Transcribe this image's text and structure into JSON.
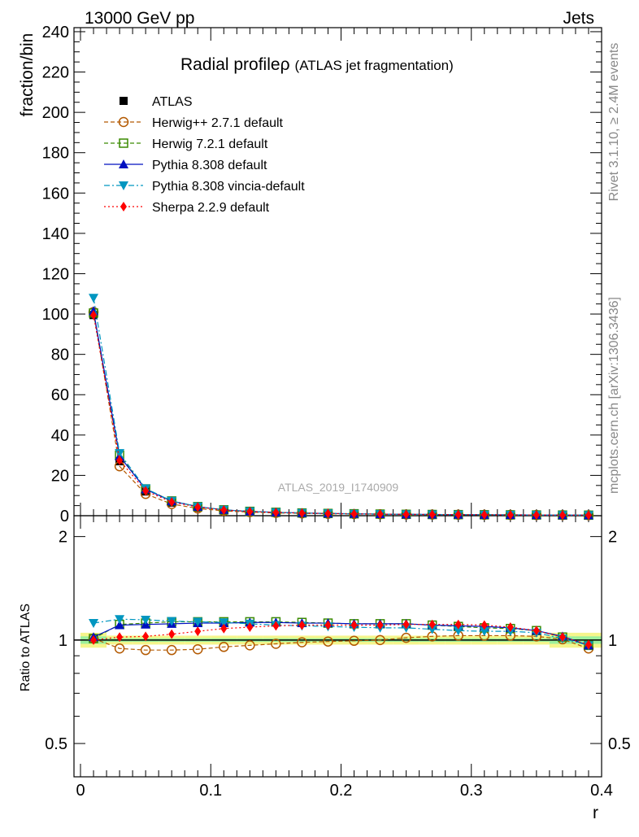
{
  "header": {
    "left_label": "13000 GeV pp",
    "right_label": "Jets"
  },
  "side_labels": {
    "rivet": "Rivet 3.1.10, ≥ 2.4M events",
    "mcplots": "mcplots.cern.ch [arXiv:1306.3436]"
  },
  "chart_data": [
    {
      "type": "scatter",
      "panel": "main",
      "title": "Radial profile",
      "title_symbol": "ρ",
      "subtitle": "(ATLAS jet fragmentation)",
      "watermark": "ATLAS_2019_I1740909",
      "ylabel": "fraction/bin",
      "xlabel": "",
      "xlim": [
        -0.005,
        0.4
      ],
      "ylim": [
        0,
        242
      ],
      "y_ticks": [
        0,
        20,
        40,
        60,
        80,
        100,
        120,
        140,
        160,
        180,
        200,
        220,
        240
      ],
      "x": [
        0.01,
        0.03,
        0.05,
        0.07,
        0.09,
        0.11,
        0.13,
        0.15,
        0.17,
        0.19,
        0.21,
        0.23,
        0.25,
        0.27,
        0.29,
        0.31,
        0.33,
        0.35,
        0.37,
        0.39
      ],
      "legend_position": "top-left",
      "series": [
        {
          "name": "ATLAS",
          "color": "#000000",
          "marker": "square-filled",
          "line": "none",
          "values": [
            99.5,
            27.0,
            12.0,
            6.5,
            4.0,
            2.6,
            1.9,
            1.5,
            1.2,
            1.0,
            0.85,
            0.72,
            0.62,
            0.55,
            0.48,
            0.43,
            0.38,
            0.34,
            0.31,
            0.28
          ]
        },
        {
          "name": "Herwig++ 2.7.1 default",
          "color": "#b35900",
          "marker": "circle-open",
          "line": "dashed",
          "values": [
            101.0,
            24.5,
            10.8,
            5.8,
            3.6,
            2.4,
            1.75,
            1.4,
            1.15,
            0.95,
            0.82,
            0.7,
            0.6,
            0.55,
            0.48,
            0.43,
            0.38,
            0.34,
            0.31,
            0.27
          ]
        },
        {
          "name": "Herwig 7.2.1 default",
          "color": "#3a8a00",
          "marker": "square-open",
          "line": "dashed",
          "values": [
            100.5,
            30.0,
            13.3,
            7.3,
            4.5,
            2.9,
            2.15,
            1.68,
            1.35,
            1.12,
            0.95,
            0.8,
            0.69,
            0.6,
            0.53,
            0.47,
            0.41,
            0.36,
            0.32,
            0.27
          ]
        },
        {
          "name": "Pythia 8.308 default",
          "color": "#0010c0",
          "marker": "triangle-up",
          "line": "solid",
          "values": [
            101.5,
            29.5,
            13.1,
            7.2,
            4.5,
            2.9,
            2.12,
            1.66,
            1.34,
            1.11,
            0.94,
            0.79,
            0.68,
            0.6,
            0.53,
            0.47,
            0.41,
            0.36,
            0.31,
            0.27
          ]
        },
        {
          "name": "Pythia 8.308 vincia-default",
          "color": "#0096c0",
          "marker": "triangle-down",
          "line": "dashdot",
          "values": [
            108.0,
            31.0,
            13.5,
            7.3,
            4.5,
            2.9,
            2.1,
            1.64,
            1.32,
            1.1,
            0.93,
            0.78,
            0.67,
            0.58,
            0.51,
            0.46,
            0.4,
            0.35,
            0.31,
            0.27
          ]
        },
        {
          "name": "Sherpa 2.2.9 default",
          "color": "#ff0000",
          "marker": "diamond",
          "line": "dotted",
          "values": [
            99.5,
            27.5,
            12.3,
            6.8,
            4.3,
            2.8,
            2.05,
            1.62,
            1.31,
            1.09,
            0.93,
            0.79,
            0.68,
            0.6,
            0.53,
            0.47,
            0.41,
            0.36,
            0.31,
            0.27
          ]
        }
      ]
    },
    {
      "type": "scatter",
      "panel": "ratio",
      "ylabel": "Ratio to ATLAS",
      "xlabel": "r",
      "xlim": [
        -0.005,
        0.4
      ],
      "ylim": [
        0.4,
        2.3
      ],
      "y_ticks": [
        0.5,
        1,
        2
      ],
      "y_tick_labels": [
        "0.5",
        "1",
        "2"
      ],
      "x_ticks": [
        0,
        0.1,
        0.2,
        0.3,
        0.4
      ],
      "x_tick_labels": [
        "0",
        "0.1",
        "0.2",
        "0.3",
        "0.4"
      ],
      "x": [
        0.01,
        0.03,
        0.05,
        0.07,
        0.09,
        0.11,
        0.13,
        0.15,
        0.17,
        0.19,
        0.21,
        0.23,
        0.25,
        0.27,
        0.29,
        0.31,
        0.33,
        0.35,
        0.37,
        0.39
      ],
      "band_outer": [
        0.05,
        0.03,
        0.03,
        0.03,
        0.03,
        0.03,
        0.03,
        0.03,
        0.03,
        0.03,
        0.03,
        0.03,
        0.03,
        0.03,
        0.03,
        0.03,
        0.03,
        0.03,
        0.05,
        0.05
      ],
      "band_inner": [
        0.025,
        0.012,
        0.012,
        0.012,
        0.012,
        0.012,
        0.012,
        0.012,
        0.012,
        0.012,
        0.012,
        0.012,
        0.012,
        0.012,
        0.012,
        0.012,
        0.012,
        0.012,
        0.025,
        0.025
      ],
      "series": [
        {
          "name": "Herwig++ 2.7.1 default",
          "color": "#b35900",
          "marker": "circle-open",
          "line": "dashed",
          "values": [
            1.01,
            0.945,
            0.935,
            0.935,
            0.94,
            0.955,
            0.965,
            0.975,
            0.985,
            0.99,
            0.995,
            1.0,
            1.015,
            1.025,
            1.03,
            1.03,
            1.03,
            1.025,
            1.005,
            0.945
          ]
        },
        {
          "name": "Herwig 7.2.1 default",
          "color": "#3a8a00",
          "marker": "square-open",
          "line": "dashed",
          "values": [
            1.01,
            1.11,
            1.12,
            1.13,
            1.13,
            1.13,
            1.13,
            1.13,
            1.125,
            1.12,
            1.115,
            1.115,
            1.115,
            1.105,
            1.095,
            1.085,
            1.08,
            1.065,
            1.02,
            0.965
          ]
        },
        {
          "name": "Pythia 8.308 default",
          "color": "#0010c0",
          "marker": "triangle-up",
          "line": "solid",
          "values": [
            1.02,
            1.105,
            1.11,
            1.115,
            1.12,
            1.12,
            1.125,
            1.125,
            1.12,
            1.12,
            1.115,
            1.115,
            1.115,
            1.105,
            1.1,
            1.095,
            1.085,
            1.065,
            1.025,
            0.965
          ]
        },
        {
          "name": "Pythia 8.308 vincia-default",
          "color": "#0096c0",
          "marker": "triangle-down",
          "line": "dashdot",
          "values": [
            1.12,
            1.15,
            1.145,
            1.135,
            1.13,
            1.125,
            1.115,
            1.105,
            1.1,
            1.095,
            1.09,
            1.085,
            1.085,
            1.075,
            1.065,
            1.06,
            1.06,
            1.05,
            1.01,
            0.965
          ]
        },
        {
          "name": "Sherpa 2.2.9 default",
          "color": "#ff0000",
          "marker": "diamond",
          "line": "dotted",
          "values": [
            1.0,
            1.02,
            1.025,
            1.04,
            1.06,
            1.08,
            1.09,
            1.1,
            1.105,
            1.105,
            1.105,
            1.105,
            1.11,
            1.11,
            1.11,
            1.105,
            1.09,
            1.065,
            1.02,
            0.97
          ]
        }
      ]
    }
  ]
}
